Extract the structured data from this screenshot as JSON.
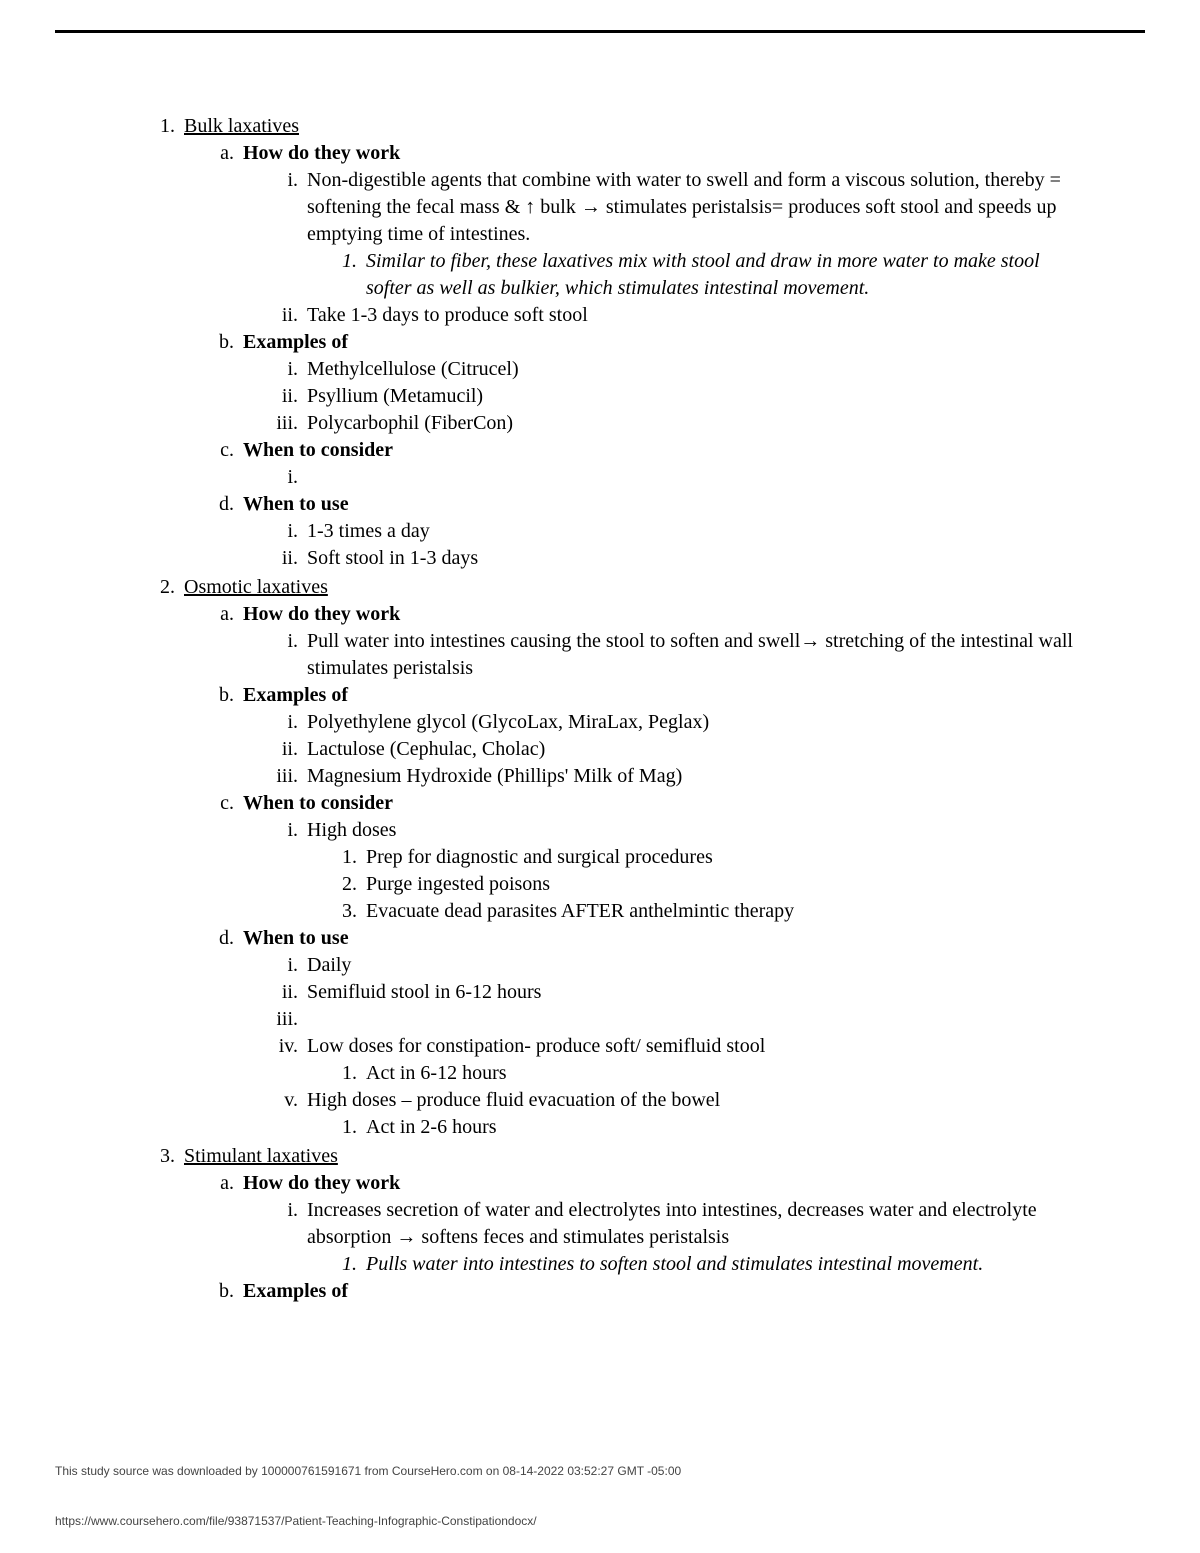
{
  "sections": [
    {
      "title": "Bulk laxatives",
      "subs": [
        {
          "heading": "How do they work",
          "items": [
            {
              "text": "Non-digestible agents that combine with water to swell and form a viscous solution, thereby = softening the fecal mass & ↑ bulk → stimulates peristalsis= produces soft stool and speeds up emptying time of intestines.",
              "sub": [
                {
                  "text": "Similar to fiber, these laxatives mix with stool and draw in more water to make stool softer as well as bulkier, which stimulates intestinal movement.",
                  "italic": true
                }
              ]
            },
            {
              "text": "Take 1-3 days to produce soft stool"
            }
          ]
        },
        {
          "heading": "Examples of",
          "items": [
            {
              "text": "Methylcellulose (Citrucel)"
            },
            {
              "text": "Psyllium (Metamucil)"
            },
            {
              "text": "Polycarbophil (FiberCon)"
            }
          ]
        },
        {
          "heading": "When to consider",
          "items": [
            {
              "text": ""
            }
          ]
        },
        {
          "heading": "When to use",
          "items": [
            {
              "text": "1-3 times a day"
            },
            {
              "text": "Soft stool in 1-3 days"
            }
          ]
        }
      ]
    },
    {
      "title": "Osmotic laxatives",
      "subs": [
        {
          "heading": "How do they work",
          "items": [
            {
              "text": "Pull water into intestines causing the stool to soften and swell→ stretching of the intestinal wall stimulates peristalsis"
            }
          ]
        },
        {
          "heading": "Examples of",
          "items": [
            {
              "text": "Polyethylene glycol (GlycoLax, MiraLax, Peglax)"
            },
            {
              "text": "Lactulose (Cephulac, Cholac)"
            },
            {
              "text": "Magnesium Hydroxide (Phillips' Milk of Mag)"
            }
          ]
        },
        {
          "heading": "When to consider",
          "items": [
            {
              "text": "High doses",
              "sub": [
                {
                  "text": "Prep for diagnostic and surgical procedures"
                },
                {
                  "text": "Purge ingested poisons"
                },
                {
                  "text": "Evacuate dead parasites AFTER anthelmintic therapy"
                }
              ]
            }
          ]
        },
        {
          "heading": "When to use",
          "items": [
            {
              "text": "Daily"
            },
            {
              "text": "Semifluid stool in 6-12 hours"
            },
            {
              "text": ""
            },
            {
              "text": "Low doses for constipation- produce soft/ semifluid stool",
              "sub": [
                {
                  "text": "Act in 6-12 hours"
                }
              ]
            },
            {
              "text": "High doses – produce fluid evacuation of the bowel",
              "sub": [
                {
                  "text": "Act in 2-6 hours"
                }
              ]
            }
          ]
        }
      ]
    },
    {
      "title": "Stimulant laxatives",
      "subs": [
        {
          "heading": "How do they work",
          "items": [
            {
              "text": "Increases secretion of water and electrolytes into intestines, decreases water and electrolyte absorption → softens feces and stimulates peristalsis",
              "sub": [
                {
                  "text": "Pulls water into intestines to soften stool and stimulates intestinal movement.",
                  "italic": true
                }
              ]
            }
          ]
        },
        {
          "heading": "Examples of",
          "items": []
        }
      ]
    }
  ],
  "footer1": "This study source was downloaded by 100000761591671 from CourseHero.com on 08-14-2022 03:52:27 GMT -05:00",
  "footer2": "https://www.coursehero.com/file/93871537/Patient-Teaching-Infographic-Constipationdocx/"
}
